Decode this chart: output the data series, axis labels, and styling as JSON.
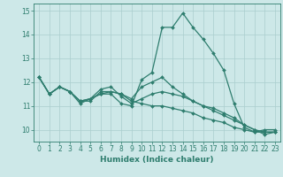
{
  "background_color": "#cde8e8",
  "grid_color": "#aacece",
  "line_color": "#2e7d6e",
  "xlabel": "Humidex (Indice chaleur)",
  "ylim": [
    9.5,
    15.3
  ],
  "xlim": [
    -0.5,
    23.5
  ],
  "yticks": [
    10,
    11,
    12,
    13,
    14,
    15
  ],
  "xticks": [
    0,
    1,
    2,
    3,
    4,
    5,
    6,
    7,
    8,
    9,
    10,
    11,
    12,
    13,
    14,
    15,
    16,
    17,
    18,
    19,
    20,
    21,
    22,
    23
  ],
  "series": [
    [
      12.2,
      11.5,
      11.8,
      11.6,
      11.1,
      11.3,
      11.5,
      11.5,
      11.1,
      11.0,
      12.1,
      12.4,
      14.3,
      14.3,
      14.9,
      14.3,
      13.8,
      13.2,
      12.5,
      11.1,
      10.1,
      9.9,
      10.0,
      10.0
    ],
    [
      12.2,
      11.5,
      11.8,
      11.6,
      11.2,
      11.2,
      11.6,
      11.6,
      11.5,
      11.3,
      11.8,
      12.0,
      12.2,
      11.8,
      11.5,
      11.2,
      11.0,
      10.8,
      10.6,
      10.4,
      10.2,
      10.0,
      9.8,
      9.9
    ],
    [
      12.2,
      11.5,
      11.8,
      11.6,
      11.2,
      11.3,
      11.7,
      11.8,
      11.4,
      11.1,
      11.3,
      11.5,
      11.6,
      11.5,
      11.4,
      11.2,
      11.0,
      10.9,
      10.7,
      10.5,
      10.2,
      10.0,
      9.9,
      9.9
    ],
    [
      12.2,
      11.5,
      11.8,
      11.6,
      11.2,
      11.3,
      11.5,
      11.6,
      11.5,
      11.2,
      11.1,
      11.0,
      11.0,
      10.9,
      10.8,
      10.7,
      10.5,
      10.4,
      10.3,
      10.1,
      10.0,
      9.9,
      9.9,
      9.9
    ]
  ],
  "figsize": [
    3.2,
    2.0
  ],
  "dpi": 100,
  "tick_fontsize": 5.5,
  "xlabel_fontsize": 6.5,
  "marker_size": 2.0,
  "linewidth": 0.9
}
